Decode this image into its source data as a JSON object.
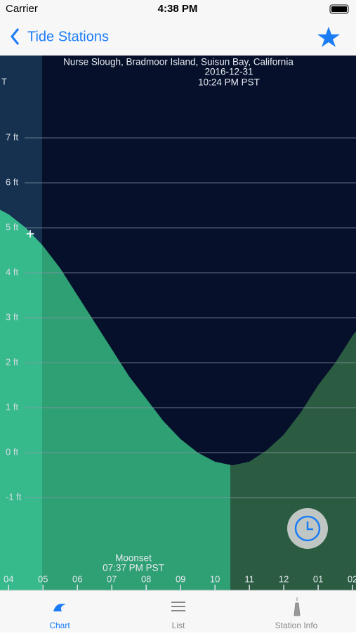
{
  "status_bar": {
    "carrier": "Carrier",
    "time": "4:38 PM"
  },
  "nav": {
    "back": "Tide Stations"
  },
  "chart_data": {
    "type": "area",
    "title": "Nurse Slough, Bradmoor Island, Suisun Bay, California",
    "date": "2016-12-31",
    "time": "10:24 PM PST",
    "axis_label": "T",
    "x": [
      3.75,
      4,
      4.5,
      5,
      5.5,
      6,
      6.5,
      7,
      7.5,
      8,
      8.5,
      9,
      9.5,
      10,
      10.5,
      11,
      11.5,
      12,
      12.5,
      13,
      13.5,
      14,
      14.1
    ],
    "values": [
      5.4,
      5.3,
      5.0,
      4.6,
      4.1,
      3.5,
      2.9,
      2.3,
      1.7,
      1.2,
      0.7,
      0.3,
      0.0,
      -0.2,
      -0.28,
      -0.2,
      0.05,
      0.4,
      0.9,
      1.5,
      2.0,
      2.6,
      2.7
    ],
    "xlim": [
      3.75,
      14.1
    ],
    "ylim": [
      -3.06,
      8.83
    ],
    "xticks": [
      {
        "value": 4,
        "label": "04"
      },
      {
        "value": 5,
        "label": "05"
      },
      {
        "value": 6,
        "label": "06"
      },
      {
        "value": 7,
        "label": "07"
      },
      {
        "value": 8,
        "label": "08"
      },
      {
        "value": 9,
        "label": "09"
      },
      10,
      11,
      12,
      {
        "value": 13,
        "label": "01"
      },
      {
        "value": 14,
        "label": "02"
      }
    ],
    "yticks": [
      {
        "value": -1,
        "label": "-1 ft"
      },
      {
        "value": 0,
        "label": "0 ft"
      },
      {
        "value": 1,
        "label": "1 ft"
      },
      {
        "value": 2,
        "label": "2 ft"
      },
      {
        "value": 3,
        "label": "3 ft"
      },
      {
        "value": 4,
        "label": "4 ft"
      },
      {
        "value": 5,
        "label": "5 ft"
      },
      {
        "value": 6,
        "label": "6 ft"
      },
      {
        "value": 7,
        "label": "7 ft"
      }
    ],
    "grid": true,
    "annotation": {
      "label": "Moonset",
      "time": "07:37 PM PST"
    }
  },
  "tab_bar": {
    "tabs": [
      "Chart",
      "List",
      "Station Info"
    ]
  }
}
